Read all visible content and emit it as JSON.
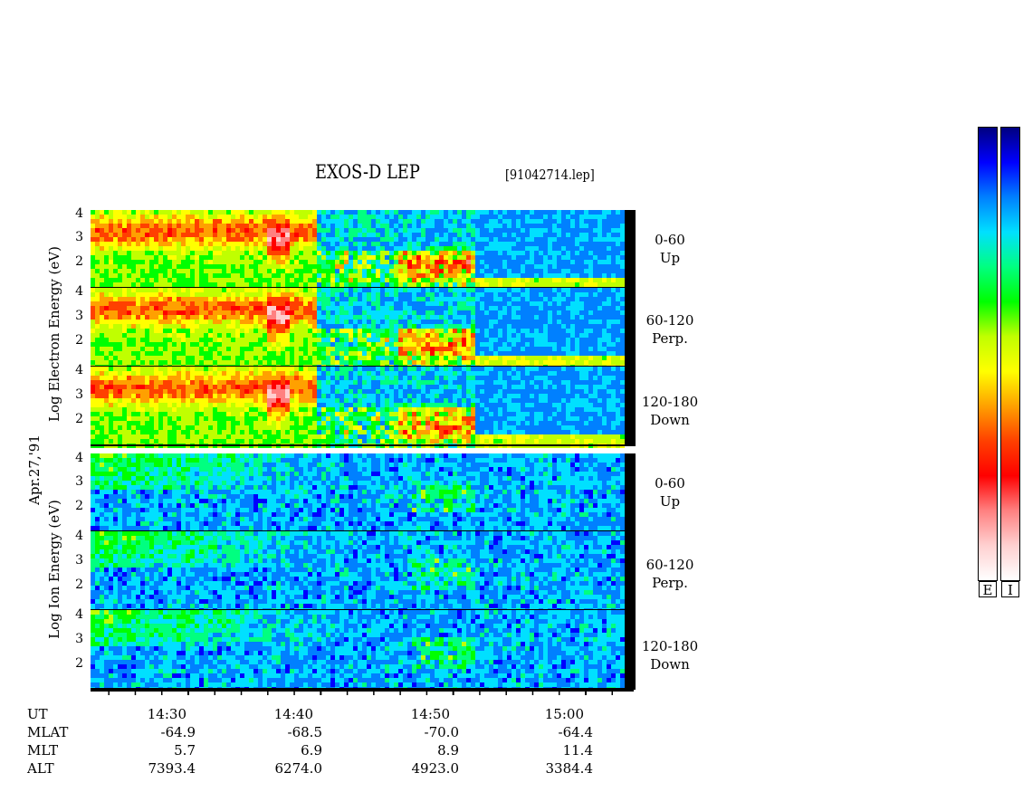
{
  "chart_data": {
    "type": "heatmap",
    "title": "EXOS-D LEP",
    "file_label": "[91042714.lep]",
    "date_label": "Apr.27,'91",
    "x_axis": {
      "ticks": [
        "14:30",
        "14:40",
        "14:50",
        "15:00"
      ],
      "range": [
        "14:24",
        "15:07"
      ],
      "rows": [
        {
          "name": "UT",
          "values": [
            "14:30",
            "14:40",
            "14:50",
            "15:00"
          ]
        },
        {
          "name": "MLAT",
          "values": [
            "-64.9",
            "-68.5",
            "-70.0",
            "-64.4"
          ]
        },
        {
          "name": "MLT",
          "values": [
            "5.7",
            "6.9",
            "8.9",
            "11.4"
          ]
        },
        {
          "name": "ALT",
          "values": [
            "7393.4",
            "6274.0",
            "4923.0",
            "3384.4"
          ]
        }
      ]
    },
    "y_ticks": [
      "4",
      "3",
      "2"
    ],
    "groups": [
      {
        "ylabel": "Log Electron Energy (eV)",
        "panels": [
          {
            "pitch": "0-60",
            "direction": "Up"
          },
          {
            "pitch": "60-120",
            "direction": "Perp."
          },
          {
            "pitch": "120-180",
            "direction": "Down"
          }
        ]
      },
      {
        "ylabel": "Log Ion Energy (eV)",
        "panels": [
          {
            "pitch": "0-60",
            "direction": "Up"
          },
          {
            "pitch": "60-120",
            "direction": "Perp."
          },
          {
            "pitch": "120-180",
            "direction": "Down"
          }
        ]
      }
    ],
    "colorbar": {
      "labels": [
        "E",
        "I"
      ],
      "colors": [
        "#000080",
        "#0000ff",
        "#0080ff",
        "#00e0ff",
        "#00ff80",
        "#00ff00",
        "#c0ff00",
        "#ffff00",
        "#ffa000",
        "#ff4000",
        "#ff0000",
        "#ff8080",
        "#ffd0d0",
        "#ffffff"
      ]
    }
  }
}
